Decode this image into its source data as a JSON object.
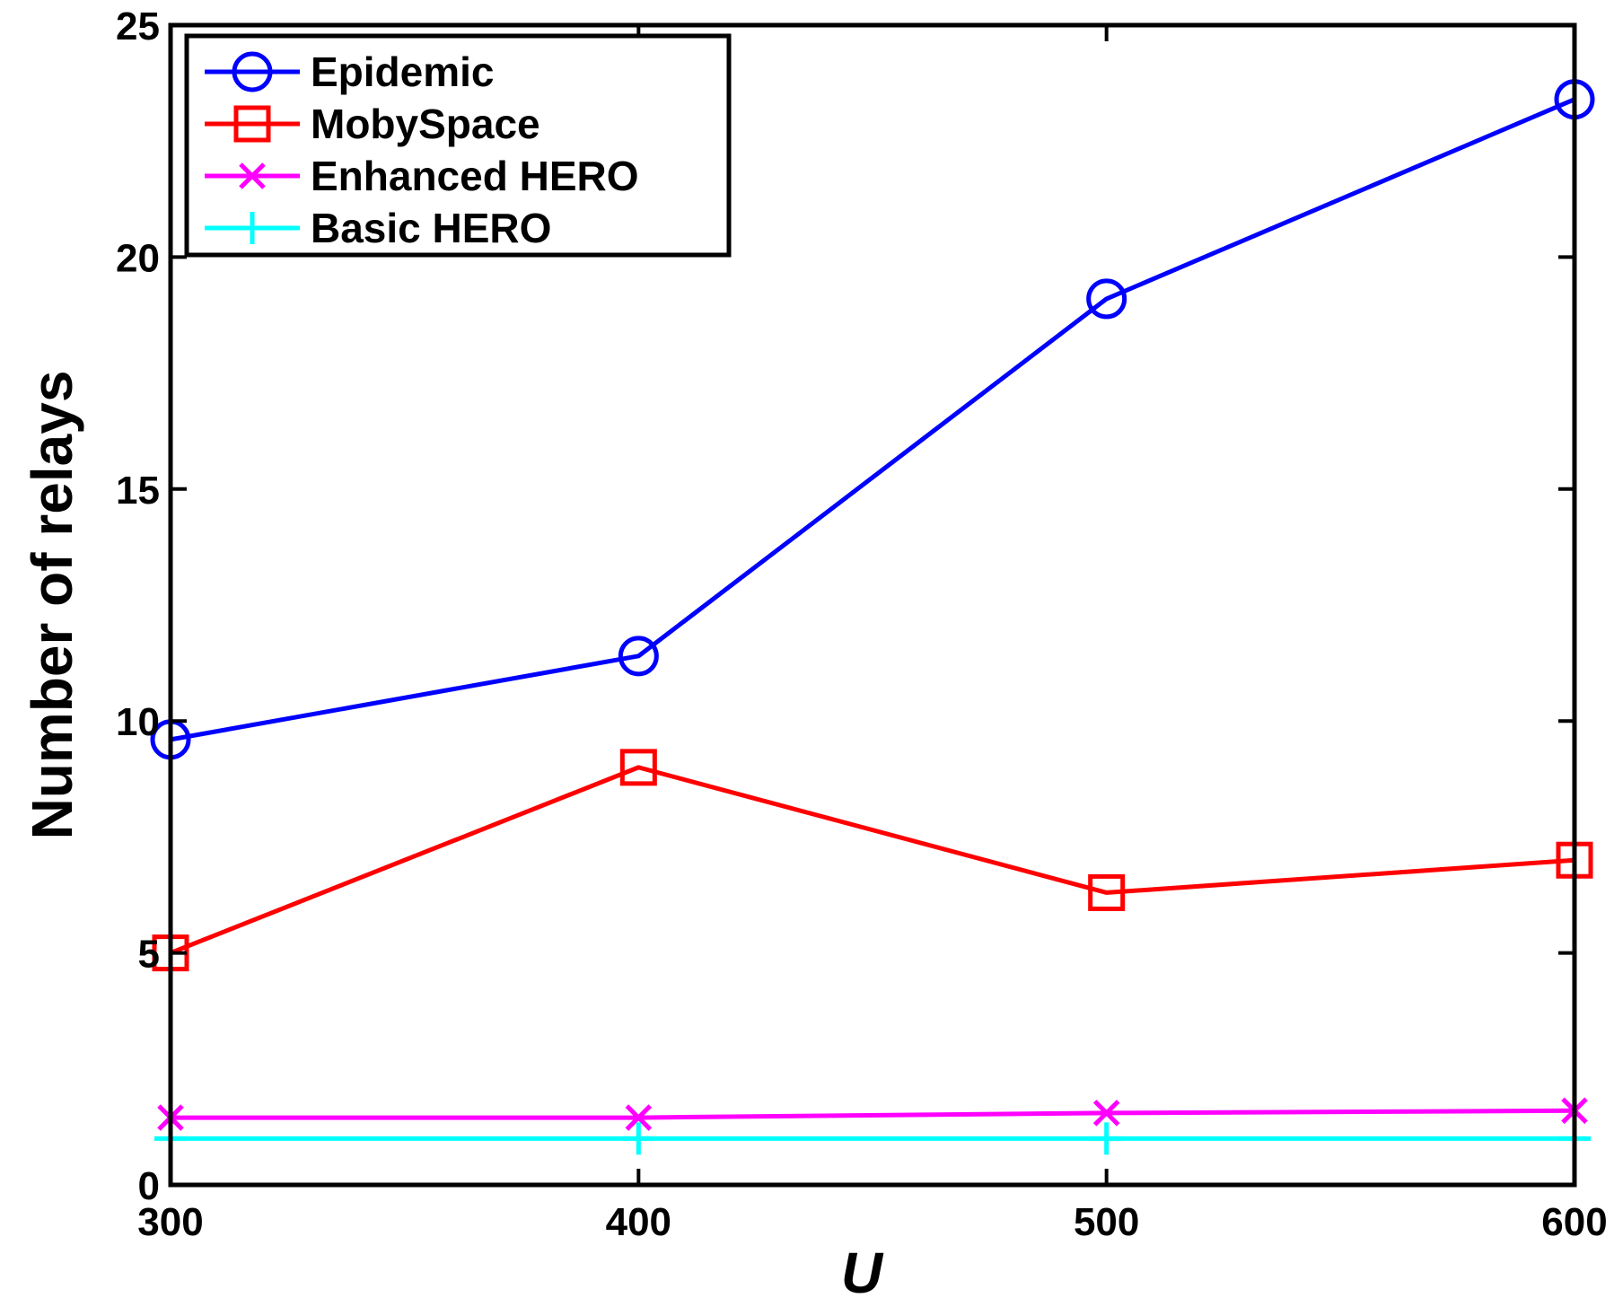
{
  "chart_data": {
    "type": "line",
    "title": "",
    "xlabel": "U",
    "ylabel": "Number of relays",
    "x": [
      300,
      400,
      500,
      600
    ],
    "xlim": [
      300,
      600
    ],
    "ylim": [
      0,
      25
    ],
    "x_ticks": [
      "300",
      "400",
      "500",
      "600"
    ],
    "y_ticks": [
      "0",
      "5",
      "10",
      "15",
      "20",
      "25"
    ],
    "grid": false,
    "legend_position": "top-left",
    "series": [
      {
        "name": "Epidemic",
        "values": [
          9.6,
          11.4,
          19.1,
          23.4
        ],
        "color": "#0000ff",
        "marker": "circle"
      },
      {
        "name": "MobySpace",
        "values": [
          5.0,
          9.0,
          6.3,
          7.0
        ],
        "color": "#ff0000",
        "marker": "square"
      },
      {
        "name": "Enhanced HERO",
        "values": [
          1.45,
          1.45,
          1.55,
          1.6
        ],
        "color": "#ff00ff",
        "marker": "x"
      },
      {
        "name": "Basic HERO",
        "values": [
          1.0,
          1.0,
          1.0,
          1.0
        ],
        "color": "#00ffff",
        "marker": "plus"
      }
    ]
  }
}
